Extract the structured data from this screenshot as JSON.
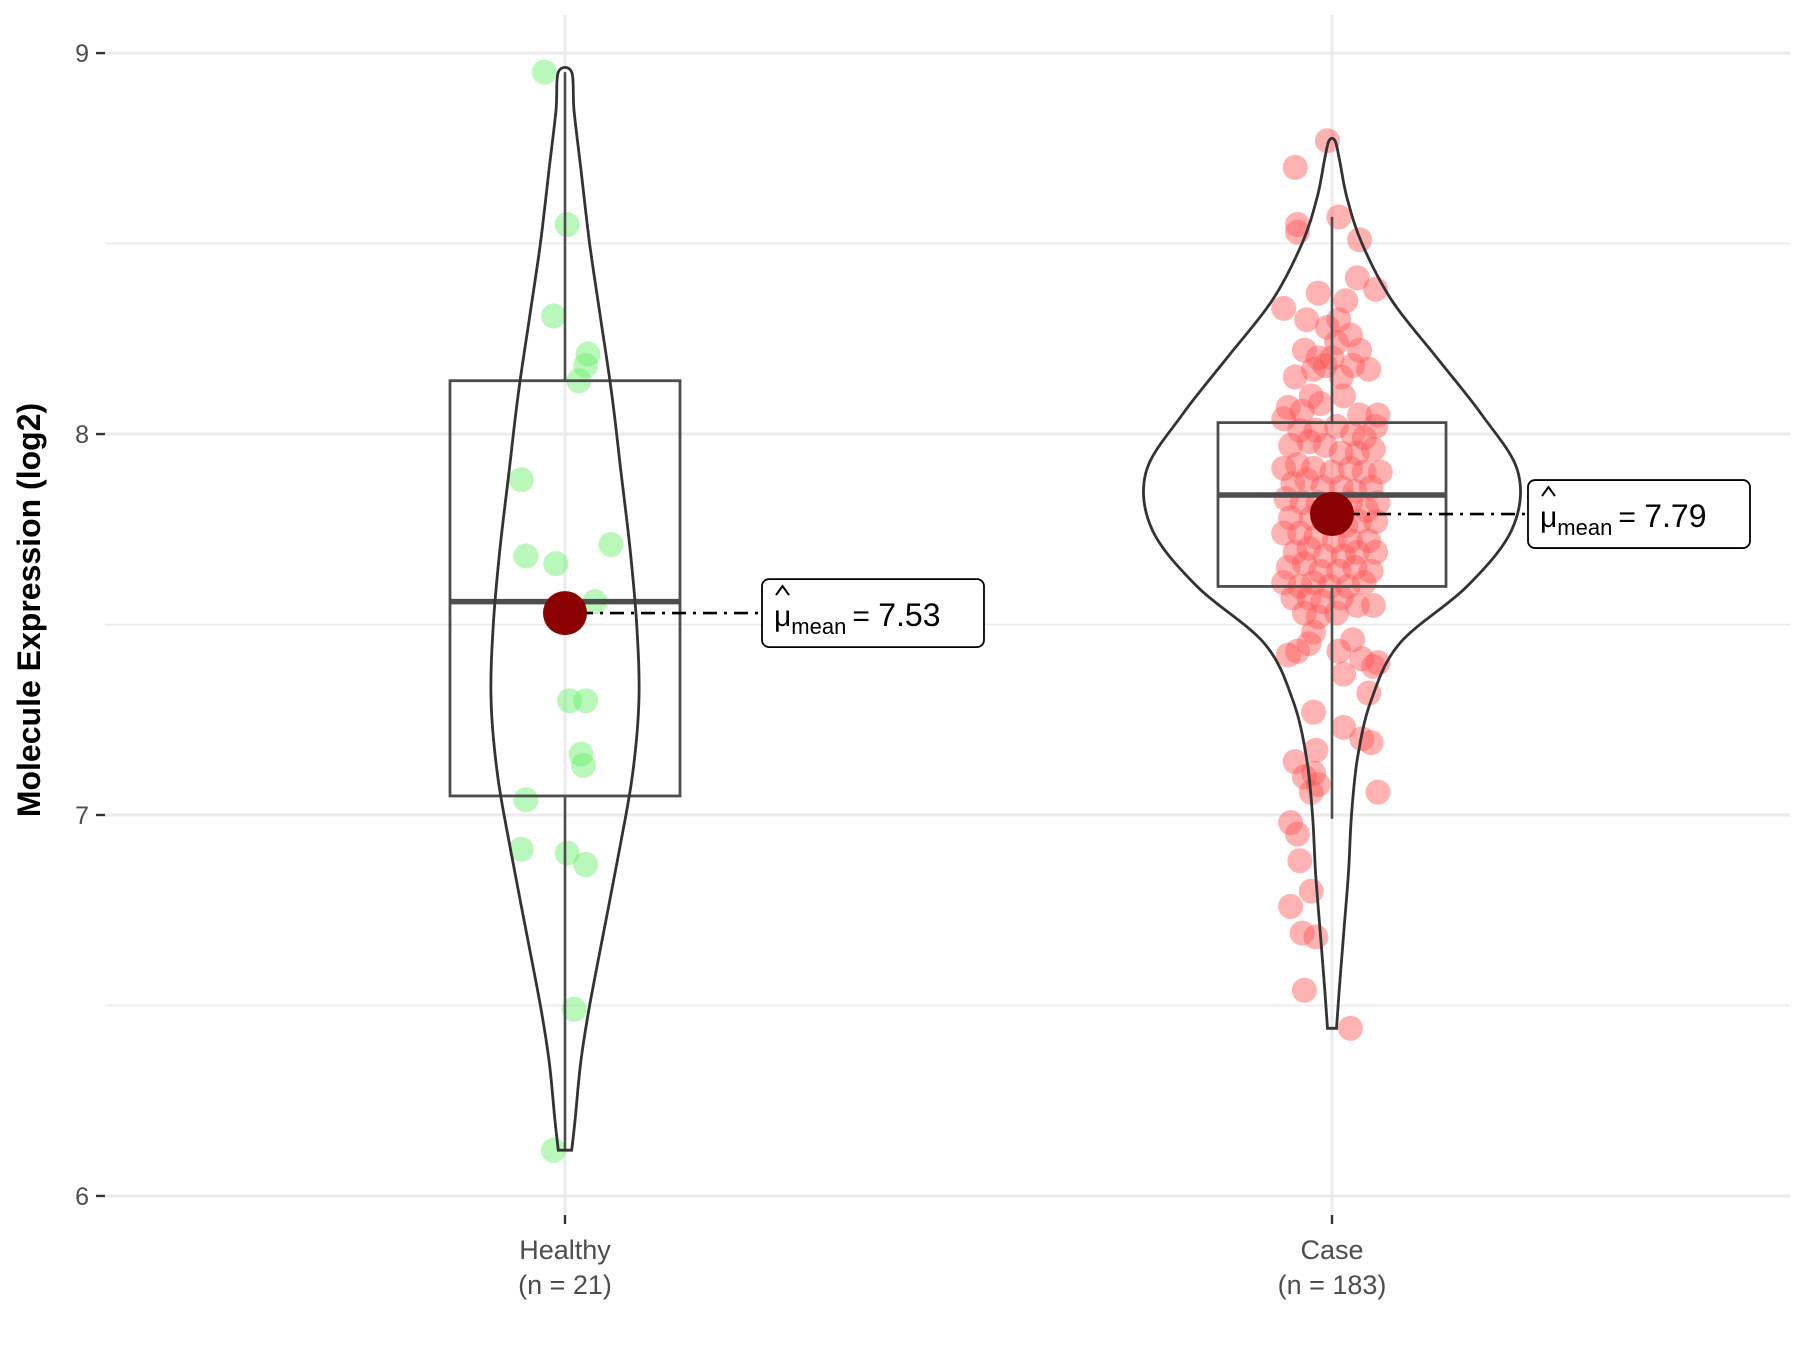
{
  "chart_data": {
    "type": "violin-box-scatter",
    "ylabel": "Molecule Expression (log2)",
    "xlabel": "",
    "ylim": [
      5.95,
      9.1
    ],
    "yticks": [
      6,
      7,
      8,
      9
    ],
    "grid": true,
    "colors": {
      "healthy_points": "#66ee66",
      "case_points": "#ff5555",
      "mean_point": "#8b0000",
      "outline": "#333333",
      "grid": "#ebebeb"
    },
    "groups": [
      {
        "name": "Healthy",
        "n_label": "(n = 21)",
        "mean": 7.53,
        "mean_symbol": "μ",
        "mean_sub": "mean",
        "mean_value_text": "7.53",
        "box": {
          "q1": 7.05,
          "median": 7.56,
          "q3": 8.14,
          "whisker_low": 6.12,
          "whisker_high": 8.95
        },
        "violin": {
          "y": [
            6.12,
            6.2,
            6.35,
            6.5,
            6.7,
            6.9,
            7.1,
            7.3,
            7.5,
            7.7,
            7.9,
            8.1,
            8.3,
            8.5,
            8.7,
            8.85,
            8.95
          ],
          "width": [
            0.06,
            0.09,
            0.14,
            0.22,
            0.35,
            0.48,
            0.6,
            0.66,
            0.64,
            0.58,
            0.5,
            0.42,
            0.32,
            0.22,
            0.14,
            0.08,
            0.06
          ]
        },
        "points": [
          [
            -0.09,
            8.95
          ],
          [
            0.01,
            8.55
          ],
          [
            -0.05,
            8.31
          ],
          [
            0.1,
            8.21
          ],
          [
            0.09,
            8.18
          ],
          [
            0.06,
            8.14
          ],
          [
            -0.19,
            7.88
          ],
          [
            -0.17,
            7.68
          ],
          [
            -0.04,
            7.66
          ],
          [
            0.2,
            7.71
          ],
          [
            0.13,
            7.56
          ],
          [
            0.02,
            7.3
          ],
          [
            0.09,
            7.3
          ],
          [
            0.07,
            7.16
          ],
          [
            0.08,
            7.13
          ],
          [
            -0.17,
            7.04
          ],
          [
            -0.19,
            6.91
          ],
          [
            0.01,
            6.9
          ],
          [
            0.09,
            6.87
          ],
          [
            0.04,
            6.49
          ],
          [
            -0.05,
            6.12
          ]
        ]
      },
      {
        "name": "Case",
        "n_label": "(n = 183)",
        "mean": 7.79,
        "mean_symbol": "μ",
        "mean_sub": "mean",
        "mean_value_text": "7.79",
        "box": {
          "q1": 7.6,
          "median": 7.84,
          "q3": 8.03,
          "whisker_low": 6.99,
          "whisker_high": 8.57
        },
        "violin": {
          "y": [
            6.44,
            6.55,
            6.7,
            6.85,
            7.0,
            7.15,
            7.3,
            7.45,
            7.6,
            7.75,
            7.9,
            8.05,
            8.2,
            8.35,
            8.5,
            8.62,
            8.72,
            8.77
          ],
          "width": [
            0.03,
            0.05,
            0.08,
            0.11,
            0.13,
            0.17,
            0.26,
            0.45,
            0.9,
            1.2,
            1.24,
            1.0,
            0.7,
            0.4,
            0.2,
            0.1,
            0.05,
            0.02
          ]
        },
        "points": [
          [
            -0.16,
            8.7
          ],
          [
            -0.15,
            8.55
          ],
          [
            -0.15,
            8.53
          ],
          [
            -0.02,
            8.77
          ],
          [
            0.03,
            8.57
          ],
          [
            0.12,
            8.51
          ],
          [
            0.11,
            8.41
          ],
          [
            0.19,
            8.38
          ],
          [
            -0.21,
            8.33
          ],
          [
            -0.06,
            8.37
          ],
          [
            0.06,
            8.35
          ],
          [
            -0.02,
            8.28
          ],
          [
            0.03,
            8.3
          ],
          [
            -0.11,
            8.3
          ],
          [
            0.08,
            8.26
          ],
          [
            0.02,
            8.24
          ],
          [
            0.0,
            8.2
          ],
          [
            -0.06,
            8.2
          ],
          [
            0.12,
            8.22
          ],
          [
            0.09,
            8.18
          ],
          [
            0.04,
            8.15
          ],
          [
            -0.03,
            8.18
          ],
          [
            -0.12,
            8.22
          ],
          [
            -0.08,
            8.17
          ],
          [
            0.16,
            8.17
          ],
          [
            -0.16,
            8.15
          ],
          [
            -0.09,
            8.1
          ],
          [
            0.05,
            8.1
          ],
          [
            -0.19,
            8.07
          ],
          [
            -0.13,
            8.06
          ],
          [
            -0.05,
            8.08
          ],
          [
            0.12,
            8.05
          ],
          [
            0.2,
            8.05
          ],
          [
            0.19,
            8.02
          ],
          [
            -0.21,
            8.04
          ],
          [
            -0.14,
            8.01
          ],
          [
            -0.07,
            8.01
          ],
          [
            0.02,
            8.02
          ],
          [
            0.09,
            8.0
          ],
          [
            0.14,
            7.99
          ],
          [
            -0.18,
            7.97
          ],
          [
            -0.1,
            7.98
          ],
          [
            -0.03,
            7.97
          ],
          [
            0.04,
            7.95
          ],
          [
            0.11,
            7.95
          ],
          [
            0.18,
            7.96
          ],
          [
            -0.21,
            7.91
          ],
          [
            -0.15,
            7.92
          ],
          [
            -0.08,
            7.91
          ],
          [
            0.0,
            7.9
          ],
          [
            0.08,
            7.91
          ],
          [
            0.14,
            7.9
          ],
          [
            0.21,
            7.9
          ],
          [
            -0.17,
            7.87
          ],
          [
            -0.11,
            7.88
          ],
          [
            -0.04,
            7.86
          ],
          [
            0.04,
            7.86
          ],
          [
            0.1,
            7.85
          ],
          [
            0.17,
            7.86
          ],
          [
            -0.2,
            7.83
          ],
          [
            -0.13,
            7.82
          ],
          [
            -0.06,
            7.82
          ],
          [
            0.02,
            7.81
          ],
          [
            0.08,
            7.82
          ],
          [
            0.15,
            7.8
          ],
          [
            0.2,
            7.82
          ],
          [
            -0.18,
            7.78
          ],
          [
            -0.09,
            7.78
          ],
          [
            -0.02,
            7.77
          ],
          [
            0.06,
            7.76
          ],
          [
            0.12,
            7.77
          ],
          [
            0.19,
            7.77
          ],
          [
            -0.21,
            7.74
          ],
          [
            -0.14,
            7.74
          ],
          [
            -0.07,
            7.73
          ],
          [
            0.01,
            7.72
          ],
          [
            0.08,
            7.72
          ],
          [
            0.16,
            7.72
          ],
          [
            -0.16,
            7.69
          ],
          [
            -0.1,
            7.7
          ],
          [
            -0.03,
            7.68
          ],
          [
            0.05,
            7.68
          ],
          [
            0.11,
            7.69
          ],
          [
            0.19,
            7.69
          ],
          [
            -0.19,
            7.65
          ],
          [
            -0.12,
            7.66
          ],
          [
            -0.05,
            7.64
          ],
          [
            0.03,
            7.64
          ],
          [
            0.1,
            7.65
          ],
          [
            0.17,
            7.64
          ],
          [
            -0.21,
            7.61
          ],
          [
            -0.14,
            7.6
          ],
          [
            -0.08,
            7.61
          ],
          [
            -0.01,
            7.6
          ],
          [
            0.07,
            7.6
          ],
          [
            0.14,
            7.61
          ],
          [
            -0.17,
            7.57
          ],
          [
            -0.1,
            7.57
          ],
          [
            -0.04,
            7.56
          ],
          [
            0.04,
            7.57
          ],
          [
            0.11,
            7.55
          ],
          [
            0.18,
            7.55
          ],
          [
            -0.12,
            7.53
          ],
          [
            -0.06,
            7.52
          ],
          [
            0.02,
            7.53
          ],
          [
            -0.08,
            7.48
          ],
          [
            -0.1,
            7.45
          ],
          [
            -0.15,
            7.43
          ],
          [
            -0.19,
            7.42
          ],
          [
            0.03,
            7.43
          ],
          [
            0.09,
            7.46
          ],
          [
            0.13,
            7.41
          ],
          [
            0.18,
            7.39
          ],
          [
            0.2,
            7.4
          ],
          [
            0.05,
            7.37
          ],
          [
            0.16,
            7.32
          ],
          [
            -0.08,
            7.27
          ],
          [
            0.05,
            7.23
          ],
          [
            0.13,
            7.2
          ],
          [
            0.17,
            7.19
          ],
          [
            -0.07,
            7.17
          ],
          [
            -0.16,
            7.14
          ],
          [
            -0.08,
            7.11
          ],
          [
            -0.12,
            7.1
          ],
          [
            -0.06,
            7.08
          ],
          [
            -0.09,
            7.06
          ],
          [
            0.2,
            7.06
          ],
          [
            -0.18,
            6.98
          ],
          [
            -0.15,
            6.95
          ],
          [
            -0.14,
            6.88
          ],
          [
            -0.09,
            6.8
          ],
          [
            -0.18,
            6.76
          ],
          [
            -0.13,
            6.69
          ],
          [
            -0.07,
            6.68
          ],
          [
            -0.12,
            6.54
          ],
          [
            0.08,
            6.44
          ]
        ]
      }
    ]
  }
}
